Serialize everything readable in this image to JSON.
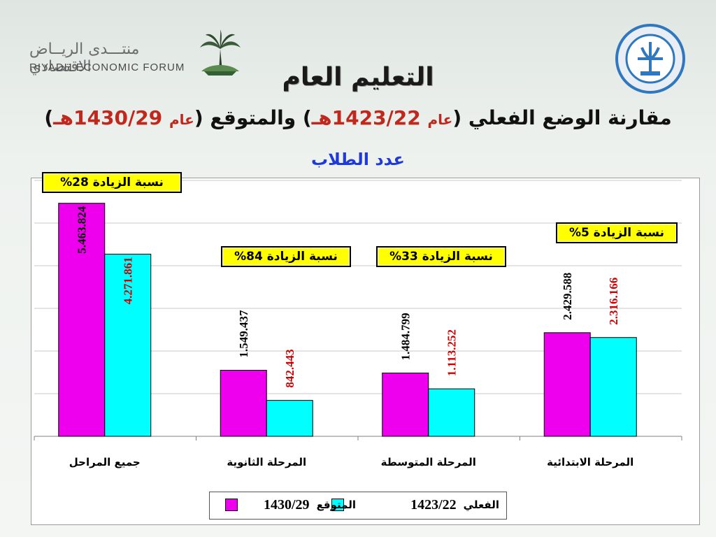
{
  "header": {
    "logo_left_arabic": "منتـــدى الريــاض الاقتصادي",
    "logo_left_english": "RIYADH ECONOMIC FORUM",
    "title": "التعليم العام",
    "subtitle_main": "مقارنة الوضع الفعلي",
    "subtitle_year1_word": "عام",
    "subtitle_year1": "1423/22",
    "subtitle_year1_suffix": "هـ",
    "subtitle_connector": "والمتوقع",
    "subtitle_year2_word": "عام",
    "subtitle_year2": "1430/29",
    "subtitle_year2_suffix": "هـ",
    "count_title": "عدد الطلاب"
  },
  "badges": [
    {
      "text": "نسبة الزيادة 28%"
    },
    {
      "text": "نسبة الزيادة 84%"
    },
    {
      "text": "نسبة الزيادة 33%"
    },
    {
      "text": "نسبة الزيادة 5%"
    }
  ],
  "legend": {
    "actual_label": "الفعلي",
    "actual_year": "1423/22",
    "expected_label": "المتوقع",
    "expected_year": "1430/29"
  },
  "colors": {
    "expected": "#ee00ee",
    "actual": "#00ffff",
    "expected_label": "#000000",
    "actual_label": "#cc0000",
    "badge": "#ffff00"
  },
  "chart_data": {
    "type": "bar",
    "categories": [
      "جميع المراحل",
      "المرحلة الثانوية",
      "المرحلة المتوسطة",
      "المرحلة الابتدائية"
    ],
    "series": [
      {
        "name": "المتوقع 1430/29",
        "values": [
          5463824,
          1549437,
          1484799,
          2429588
        ],
        "labels": [
          "5.463.824",
          "1.549.437",
          "1.484.799",
          "2.429.588"
        ]
      },
      {
        "name": "الفعلي 1423/22",
        "values": [
          4271861,
          842443,
          1113252,
          2316166
        ],
        "labels": [
          "4.271.861",
          "842.443",
          "1.113.252",
          "2.316.166"
        ]
      }
    ],
    "ylim": [
      0,
      6000000
    ],
    "grid": true,
    "legend_position": "bottom"
  }
}
